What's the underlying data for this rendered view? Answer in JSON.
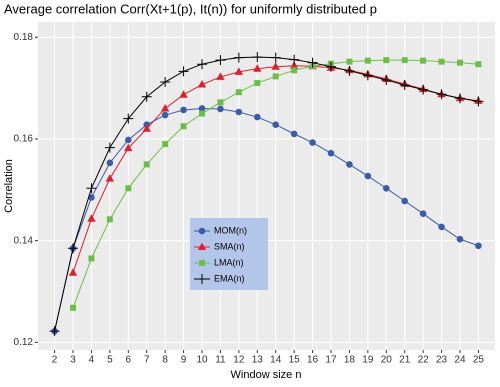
{
  "chart_data": {
    "type": "line",
    "title": "Average correlation Corr(Xt+1(p), It(n)) for uniformly distributed p",
    "xlabel": "Window size n",
    "ylabel": "Correlation",
    "x": [
      2,
      3,
      4,
      5,
      6,
      7,
      8,
      9,
      10,
      11,
      12,
      13,
      14,
      15,
      16,
      17,
      18,
      19,
      20,
      21,
      22,
      23,
      24,
      25
    ],
    "series": [
      {
        "name": "MOM(n)",
        "color": "#3b5bab",
        "marker": "circle",
        "values": [
          0.1222,
          0.1385,
          0.1485,
          0.1553,
          0.1598,
          0.1628,
          0.1647,
          0.1657,
          0.166,
          0.1659,
          0.1653,
          0.1643,
          0.1628,
          0.161,
          0.1593,
          0.1572,
          0.155,
          0.1527,
          0.1503,
          0.1478,
          0.1453,
          0.1427,
          0.1403,
          0.139
        ]
      },
      {
        "name": "SMA(n)",
        "color": "#e0202a",
        "marker": "triangle",
        "values": [
          null,
          0.1337,
          0.1443,
          0.1522,
          0.1582,
          0.162,
          0.166,
          0.1687,
          0.1707,
          0.1722,
          0.1732,
          0.1738,
          0.1742,
          0.1744,
          0.1743,
          0.174,
          0.1735,
          0.1727,
          0.1718,
          0.1708,
          0.1698,
          0.1688,
          0.168,
          0.1675
        ]
      },
      {
        "name": "LMA(n)",
        "color": "#6cbf45",
        "marker": "square",
        "values": [
          null,
          0.1268,
          0.1365,
          0.1442,
          0.1503,
          0.155,
          0.159,
          0.1625,
          0.165,
          0.1672,
          0.1692,
          0.171,
          0.1723,
          0.1735,
          0.1743,
          0.1748,
          0.1752,
          0.1754,
          0.1755,
          0.1755,
          0.1754,
          0.1752,
          0.175,
          0.1747
        ]
      },
      {
        "name": "EMA(n)",
        "color": "#000000",
        "marker": "plus",
        "values": [
          0.1222,
          0.1385,
          0.1503,
          0.1583,
          0.164,
          0.1683,
          0.1712,
          0.1733,
          0.1747,
          0.1755,
          0.176,
          0.1761,
          0.176,
          0.1756,
          0.175,
          0.1742,
          0.1734,
          0.1725,
          0.1716,
          0.1706,
          0.1697,
          0.1688,
          0.168,
          0.1674
        ]
      }
    ],
    "xlim": [
      1.1,
      25.9
    ],
    "ylim": [
      0.1185,
      0.183
    ],
    "xticks": [
      2,
      3,
      4,
      5,
      6,
      7,
      8,
      9,
      10,
      11,
      12,
      13,
      14,
      15,
      16,
      17,
      18,
      19,
      20,
      21,
      22,
      23,
      24,
      25
    ],
    "yticks": [
      0.12,
      0.14,
      0.16,
      0.18
    ],
    "grid": true
  }
}
